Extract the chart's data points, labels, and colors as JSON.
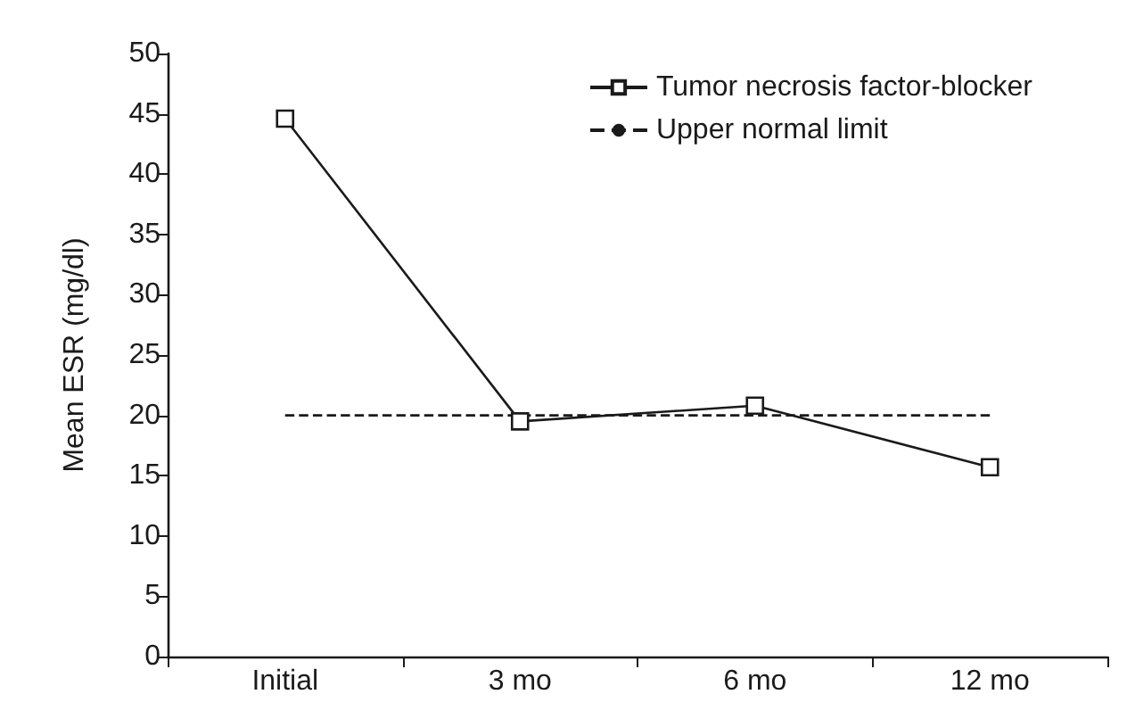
{
  "chart_data": {
    "type": "line",
    "ylabel": "Mean ESR (mg/dl)",
    "categories": [
      "Initial",
      "3 mo",
      "6 mo",
      "12 mo"
    ],
    "series": [
      {
        "name": "Tumor necrosis factor-blocker",
        "color": "#1a1a1a",
        "values": [
          44.6,
          19.5,
          20.8,
          15.7
        ]
      }
    ],
    "ylim": [
      0,
      50
    ],
    "yticks": [
      0,
      5,
      10,
      15,
      20,
      25,
      30,
      35,
      40,
      45,
      50
    ],
    "ref_lines": [
      {
        "axis": "y",
        "value": 20,
        "label": "Upper normal limit",
        "color": "#1a1a1a",
        "line_style": "dashed"
      }
    ],
    "marker": "square",
    "line_style": "solid",
    "grid": false,
    "legend": "top right"
  }
}
